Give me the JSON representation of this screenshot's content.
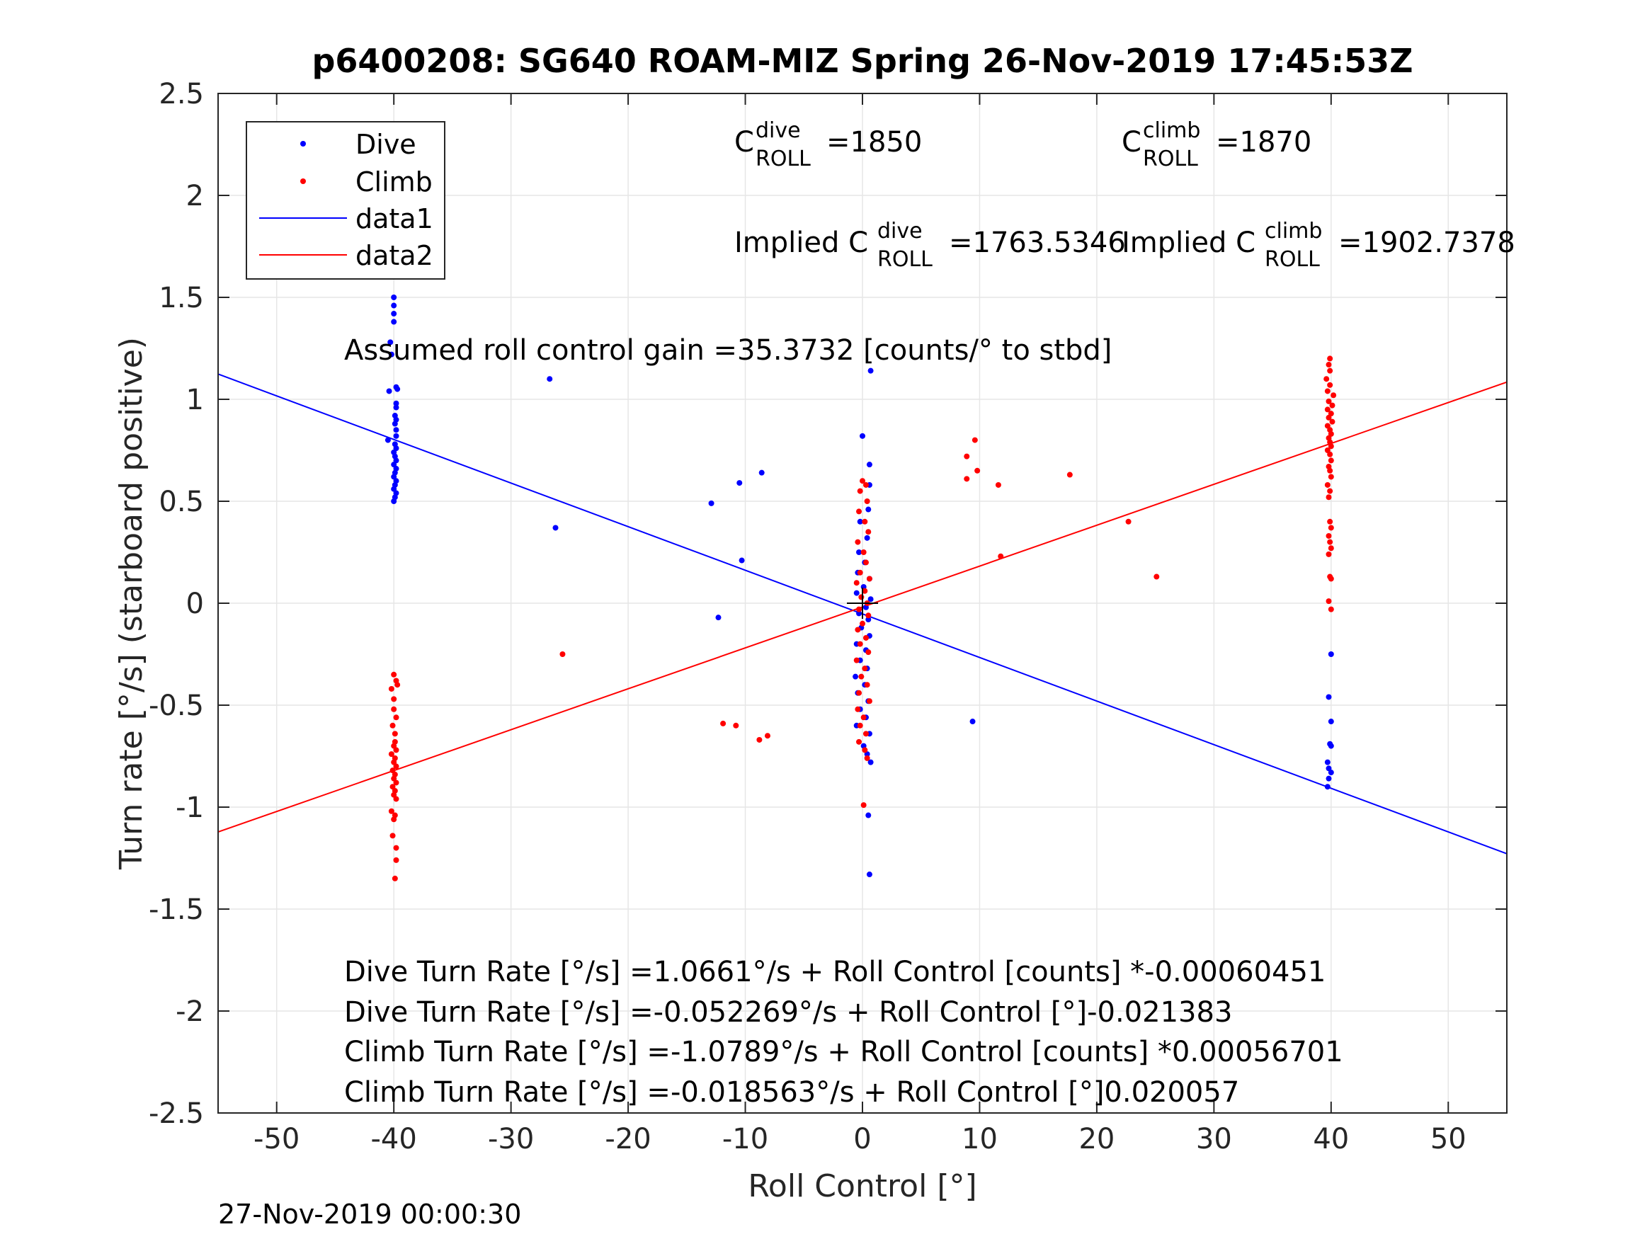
{
  "chart_data": {
    "type": "scatter",
    "title": "p6400208: SG640 ROAM-MIZ Spring 26-Nov-2019 17:45:53Z",
    "xlabel": "Roll Control [°]",
    "ylabel": "Turn rate [°/s] (starboard positive)",
    "xlim": [
      -55,
      55
    ],
    "ylim": [
      -2.5,
      2.5
    ],
    "xticks": [
      -50,
      -40,
      -30,
      -20,
      -10,
      0,
      10,
      20,
      30,
      40,
      50
    ],
    "xtick_labels": [
      "-50",
      "-40",
      "-30",
      "-20",
      "-10",
      "0",
      "10",
      "20",
      "30",
      "40",
      "50"
    ],
    "yticks": [
      -2.5,
      -2,
      -1.5,
      -1,
      -0.5,
      0,
      0.5,
      1,
      1.5,
      2,
      2.5
    ],
    "ytick_labels": [
      "-2.5",
      "-2",
      "-1.5",
      "-1",
      "-0.5",
      "0",
      "0.5",
      "1",
      "1.5",
      "2",
      "2.5"
    ],
    "grid": true,
    "legend_position": "top-left",
    "legend": [
      "Dive",
      "Climb",
      "data1",
      "data2"
    ],
    "series": [
      {
        "name": "Dive",
        "kind": "points",
        "color": "#0000ff",
        "points": [
          [
            -40,
            1.5
          ],
          [
            -40,
            1.46
          ],
          [
            -40,
            1.42
          ],
          [
            -40,
            1.38
          ],
          [
            -40.3,
            1.28
          ],
          [
            -40.2,
            1.22
          ],
          [
            -40.4,
            1.04
          ],
          [
            -39.8,
            1.06
          ],
          [
            -39.7,
            1.05
          ],
          [
            -39.8,
            0.98
          ],
          [
            -39.8,
            0.96
          ],
          [
            -39.9,
            0.92
          ],
          [
            -39.8,
            0.9
          ],
          [
            -39.9,
            0.88
          ],
          [
            -39.8,
            0.85
          ],
          [
            -39.8,
            0.82
          ],
          [
            -40.5,
            0.8
          ],
          [
            -39.9,
            0.78
          ],
          [
            -39.8,
            0.76
          ],
          [
            -40,
            0.74
          ],
          [
            -39.9,
            0.72
          ],
          [
            -39.8,
            0.7
          ],
          [
            -40,
            0.68
          ],
          [
            -39.8,
            0.66
          ],
          [
            -39.9,
            0.64
          ],
          [
            -40,
            0.62
          ],
          [
            -39.8,
            0.6
          ],
          [
            -39.9,
            0.58
          ],
          [
            -40,
            0.56
          ],
          [
            -39.8,
            0.54
          ],
          [
            -39.9,
            0.52
          ],
          [
            -40,
            0.5
          ],
          [
            -26.7,
            1.1
          ],
          [
            -26.2,
            0.37
          ],
          [
            -12.9,
            0.49
          ],
          [
            -10.5,
            0.59
          ],
          [
            -8.6,
            0.64
          ],
          [
            -10.3,
            0.21
          ],
          [
            -12.3,
            -0.07
          ],
          [
            0.7,
            1.14
          ],
          [
            0,
            0.82
          ],
          [
            0.6,
            0.68
          ],
          [
            0.6,
            0.58
          ],
          [
            0.5,
            0.46
          ],
          [
            -0.2,
            0.4
          ],
          [
            0.4,
            0.32
          ],
          [
            -0.3,
            0.25
          ],
          [
            0.2,
            0.2
          ],
          [
            -0.4,
            0.15
          ],
          [
            0.6,
            0.12
          ],
          [
            0.1,
            0.08
          ],
          [
            -0.5,
            0.05
          ],
          [
            0.7,
            0.02
          ],
          [
            0.3,
            -0.02
          ],
          [
            -0.3,
            -0.05
          ],
          [
            0.5,
            -0.08
          ],
          [
            -0.1,
            -0.12
          ],
          [
            0.6,
            -0.16
          ],
          [
            -0.5,
            -0.2
          ],
          [
            0.3,
            -0.23
          ],
          [
            -0.2,
            -0.28
          ],
          [
            0.4,
            -0.32
          ],
          [
            -0.6,
            -0.36
          ],
          [
            0.2,
            -0.4
          ],
          [
            -0.4,
            -0.44
          ],
          [
            0.5,
            -0.48
          ],
          [
            -0.2,
            -0.52
          ],
          [
            0.3,
            -0.56
          ],
          [
            -0.5,
            -0.6
          ],
          [
            0.6,
            -0.64
          ],
          [
            0.1,
            -0.7
          ],
          [
            0.4,
            -0.74
          ],
          [
            0.7,
            -0.78
          ],
          [
            0.5,
            -1.04
          ],
          [
            0.6,
            -1.33
          ],
          [
            9.4,
            -0.58
          ],
          [
            40,
            -0.25
          ],
          [
            39.8,
            -0.46
          ],
          [
            40,
            -0.58
          ],
          [
            39.9,
            -0.69
          ],
          [
            40,
            -0.7
          ],
          [
            39.7,
            -0.78
          ],
          [
            39.8,
            -0.81
          ],
          [
            40,
            -0.83
          ],
          [
            39.8,
            -0.86
          ],
          [
            39.7,
            -0.9
          ]
        ]
      },
      {
        "name": "Climb",
        "kind": "points",
        "color": "#ff0000",
        "points": [
          [
            -40,
            -0.35
          ],
          [
            -39.8,
            -0.38
          ],
          [
            -40.2,
            -0.42
          ],
          [
            -39.7,
            -0.4
          ],
          [
            -40,
            -0.47
          ],
          [
            -40,
            -0.52
          ],
          [
            -39.8,
            -0.56
          ],
          [
            -40.1,
            -0.6
          ],
          [
            -39.9,
            -0.64
          ],
          [
            -39.9,
            -0.68
          ],
          [
            -40,
            -0.7
          ],
          [
            -39.8,
            -0.72
          ],
          [
            -40.2,
            -0.74
          ],
          [
            -39.9,
            -0.76
          ],
          [
            -40,
            -0.78
          ],
          [
            -39.8,
            -0.8
          ],
          [
            -40.1,
            -0.82
          ],
          [
            -39.9,
            -0.84
          ],
          [
            -40,
            -0.86
          ],
          [
            -39.8,
            -0.88
          ],
          [
            -40.1,
            -0.9
          ],
          [
            -39.9,
            -0.92
          ],
          [
            -40,
            -0.94
          ],
          [
            -39.8,
            -0.96
          ],
          [
            -40.2,
            -1.02
          ],
          [
            -39.9,
            -1.04
          ],
          [
            -40,
            -1.06
          ],
          [
            -40.1,
            -1.14
          ],
          [
            -39.8,
            -1.2
          ],
          [
            -39.8,
            -1.26
          ],
          [
            -39.9,
            -1.35
          ],
          [
            -25.6,
            -0.25
          ],
          [
            -11.9,
            -0.59
          ],
          [
            -10.8,
            -0.6
          ],
          [
            -8.8,
            -0.67
          ],
          [
            -8.1,
            -0.65
          ],
          [
            0,
            0.6
          ],
          [
            0.3,
            0.58
          ],
          [
            -0.2,
            0.55
          ],
          [
            0.4,
            0.5
          ],
          [
            -0.3,
            0.45
          ],
          [
            0.2,
            0.4
          ],
          [
            0.5,
            0.35
          ],
          [
            -0.4,
            0.3
          ],
          [
            0.1,
            0.25
          ],
          [
            0.3,
            0.2
          ],
          [
            -0.2,
            0.15
          ],
          [
            0.6,
            0.12
          ],
          [
            -0.5,
            0.1
          ],
          [
            0.2,
            0.06
          ],
          [
            -0.1,
            0.03
          ],
          [
            0.4,
            0.0
          ],
          [
            -0.3,
            -0.03
          ],
          [
            0.5,
            -0.06
          ],
          [
            0,
            -0.1
          ],
          [
            -0.4,
            -0.13
          ],
          [
            0.3,
            -0.17
          ],
          [
            -0.2,
            -0.2
          ],
          [
            0.5,
            -0.24
          ],
          [
            -0.5,
            -0.28
          ],
          [
            0.2,
            -0.32
          ],
          [
            -0.1,
            -0.36
          ],
          [
            0.4,
            -0.4
          ],
          [
            -0.3,
            -0.44
          ],
          [
            0.6,
            -0.48
          ],
          [
            -0.4,
            -0.52
          ],
          [
            0.1,
            -0.56
          ],
          [
            -0.2,
            -0.6
          ],
          [
            0.3,
            -0.64
          ],
          [
            -0.3,
            -0.68
          ],
          [
            0.2,
            -0.72
          ],
          [
            0.4,
            -0.76
          ],
          [
            0.1,
            -0.99
          ],
          [
            8.9,
            0.72
          ],
          [
            9.6,
            0.8
          ],
          [
            8.9,
            0.61
          ],
          [
            9.8,
            0.65
          ],
          [
            11.6,
            0.58
          ],
          [
            11.8,
            0.23
          ],
          [
            17.7,
            0.63
          ],
          [
            22.7,
            0.4
          ],
          [
            25.1,
            0.13
          ],
          [
            39.9,
            1.2
          ],
          [
            39.8,
            1.17
          ],
          [
            39.9,
            1.14
          ],
          [
            39.6,
            1.1
          ],
          [
            39.9,
            1.07
          ],
          [
            39.7,
            1.04
          ],
          [
            40.2,
            1.02
          ],
          [
            39.8,
            0.99
          ],
          [
            40.1,
            0.97
          ],
          [
            39.7,
            0.95
          ],
          [
            40,
            0.93
          ],
          [
            39.8,
            0.91
          ],
          [
            40.1,
            0.89
          ],
          [
            39.7,
            0.87
          ],
          [
            39.9,
            0.85
          ],
          [
            40,
            0.83
          ],
          [
            39.8,
            0.81
          ],
          [
            39.9,
            0.79
          ],
          [
            40,
            0.77
          ],
          [
            39.7,
            0.75
          ],
          [
            39.9,
            0.73
          ],
          [
            40,
            0.7
          ],
          [
            39.8,
            0.67
          ],
          [
            39.9,
            0.65
          ],
          [
            40,
            0.62
          ],
          [
            39.7,
            0.58
          ],
          [
            39.9,
            0.55
          ],
          [
            39.8,
            0.52
          ],
          [
            39.9,
            0.4
          ],
          [
            40,
            0.37
          ],
          [
            39.8,
            0.33
          ],
          [
            39.9,
            0.3
          ],
          [
            40,
            0.27
          ],
          [
            39.8,
            0.24
          ],
          [
            39.9,
            0.13
          ],
          [
            40,
            0.12
          ],
          [
            39.8,
            0.01
          ],
          [
            40,
            -0.03
          ]
        ]
      },
      {
        "name": "data1",
        "kind": "line",
        "color": "#0000ff",
        "slope": -0.021383,
        "intercept": -0.052269
      },
      {
        "name": "data2",
        "kind": "line",
        "color": "#ff0000",
        "slope": 0.020057,
        "intercept": -0.018563
      }
    ],
    "annotations": {
      "c_roll_dive": {
        "base": "C",
        "sup": "dive",
        "sub": "ROLL",
        "value": "=1850"
      },
      "c_roll_climb": {
        "base": "C",
        "sup": "climb",
        "sub": "ROLL",
        "value": "=1870"
      },
      "implied_dive": {
        "prefix": "Implied C",
        "sup": "dive",
        "sub": "ROLL",
        "value": "=1763.5346"
      },
      "implied_climb": {
        "prefix": "Implied C",
        "sup": "climb",
        "sub": "ROLL",
        "value": "=1902.7378"
      },
      "gain": "Assumed roll control gain =35.3732 [counts/° to stbd]",
      "fit_lines": [
        "Dive Turn Rate [°/s] =1.0661°/s + Roll Control [counts] *-0.00060451",
        "Dive Turn Rate [°/s] =-0.052269°/s + Roll Control [°]-0.021383",
        "Climb Turn Rate [°/s] =-1.0789°/s + Roll Control [counts] *0.00056701",
        "Climb Turn Rate [°/s] =-0.018563°/s + Roll Control [°]0.020057"
      ]
    },
    "footer": "27-Nov-2019 00:00:30"
  }
}
